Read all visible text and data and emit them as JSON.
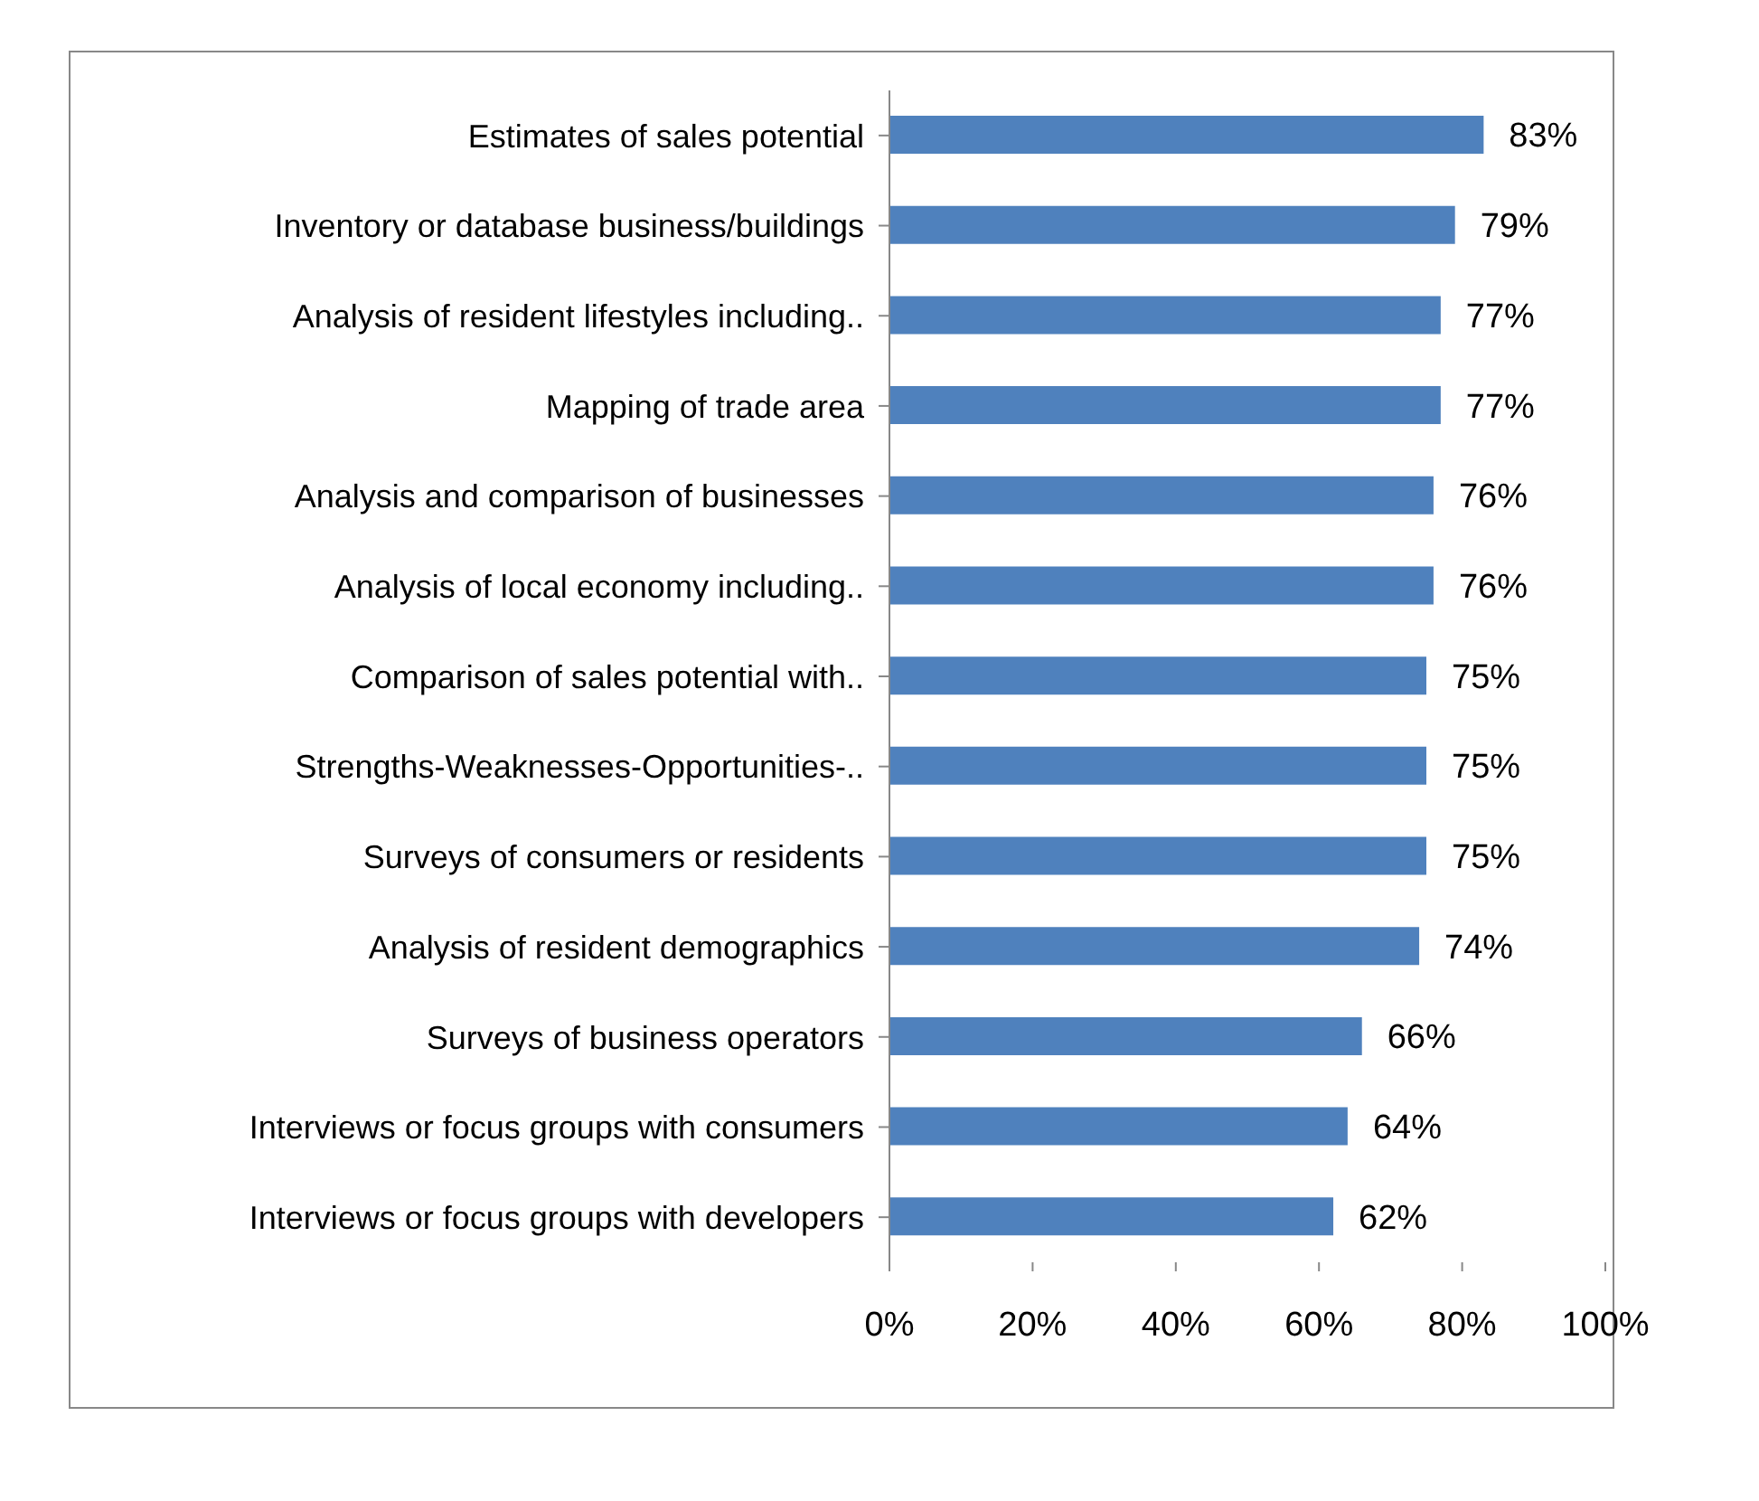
{
  "chart_data": {
    "type": "bar",
    "orientation": "horizontal",
    "categories": [
      "Estimates of sales potential",
      "Inventory or database business/buildings",
      "Analysis of resident lifestyles including..",
      "Mapping of trade area",
      "Analysis and comparison of businesses",
      "Analysis of local economy including..",
      "Comparison of sales potential with..",
      "Strengths-Weaknesses-Opportunities-..",
      "Surveys of consumers or residents",
      "Analysis of resident demographics",
      "Surveys of business operators",
      "Interviews or focus groups with consumers",
      "Interviews or focus groups with developers"
    ],
    "values": [
      83,
      79,
      77,
      77,
      76,
      76,
      75,
      75,
      75,
      74,
      66,
      64,
      62
    ],
    "value_labels": [
      "83%",
      "79%",
      "77%",
      "77%",
      "76%",
      "76%",
      "75%",
      "75%",
      "75%",
      "74%",
      "66%",
      "64%",
      "62%"
    ],
    "color": "#4f81bd",
    "xlim": [
      0,
      100
    ],
    "xticks": [
      {
        "value": 0,
        "label": "0%"
      },
      {
        "value": 20,
        "label": "20%"
      },
      {
        "value": 40,
        "label": "40%"
      },
      {
        "value": 60,
        "label": "60%"
      },
      {
        "value": 80,
        "label": "80%"
      },
      {
        "value": 100,
        "label": "100%"
      }
    ],
    "grid": false,
    "legend": false
  }
}
